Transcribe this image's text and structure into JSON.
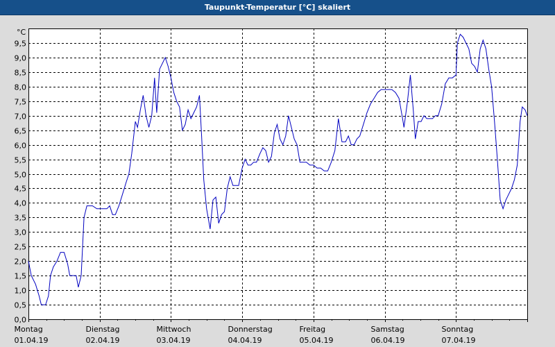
{
  "chart_data": {
    "type": "line",
    "title": "Taupunkt-Temperatur [°C] skaliert",
    "ylabel": "°C",
    "xlabel": "",
    "ylim": [
      0,
      10
    ],
    "yticks": [
      "0,0",
      "0,5",
      "1,0",
      "1,5",
      "2,0",
      "2,5",
      "3,0",
      "3,5",
      "4,0",
      "4,5",
      "5,0",
      "5,5",
      "6,0",
      "6,5",
      "7,0",
      "7,5",
      "8,0",
      "8,5",
      "9,0",
      "9,5"
    ],
    "days": [
      {
        "name": "Montag",
        "date": "01.04.19"
      },
      {
        "name": "Dienstag",
        "date": "02.04.19"
      },
      {
        "name": "Mittwoch",
        "date": "03.04.19"
      },
      {
        "name": "Donnerstag",
        "date": "04.04.19"
      },
      {
        "name": "Freitag",
        "date": "05.04.19"
      },
      {
        "name": "Samstag",
        "date": "06.04.19"
      },
      {
        "name": "Sonntag",
        "date": "07.04.19"
      }
    ],
    "xlim_days": [
      0,
      7
    ],
    "grid": true,
    "series": [
      {
        "color": "#0000c0",
        "points": [
          [
            0.0,
            2.0
          ],
          [
            0.04,
            1.5
          ],
          [
            0.1,
            1.2
          ],
          [
            0.15,
            0.8
          ],
          [
            0.18,
            0.5
          ],
          [
            0.24,
            0.5
          ],
          [
            0.28,
            0.8
          ],
          [
            0.31,
            1.5
          ],
          [
            0.35,
            1.8
          ],
          [
            0.4,
            2.0
          ],
          [
            0.45,
            2.3
          ],
          [
            0.5,
            2.3
          ],
          [
            0.55,
            1.9
          ],
          [
            0.58,
            1.5
          ],
          [
            0.63,
            1.5
          ],
          [
            0.67,
            1.5
          ],
          [
            0.7,
            1.1
          ],
          [
            0.74,
            1.5
          ],
          [
            0.78,
            3.5
          ],
          [
            0.82,
            3.9
          ],
          [
            0.86,
            3.9
          ],
          [
            0.9,
            3.9
          ],
          [
            0.96,
            3.8
          ],
          [
            1.0,
            3.8
          ],
          [
            1.05,
            3.8
          ],
          [
            1.1,
            3.8
          ],
          [
            1.14,
            3.9
          ],
          [
            1.18,
            3.6
          ],
          [
            1.22,
            3.6
          ],
          [
            1.27,
            3.9
          ],
          [
            1.32,
            4.3
          ],
          [
            1.37,
            4.7
          ],
          [
            1.41,
            5.0
          ],
          [
            1.45,
            5.7
          ],
          [
            1.5,
            6.8
          ],
          [
            1.53,
            6.6
          ],
          [
            1.57,
            7.2
          ],
          [
            1.61,
            7.7
          ],
          [
            1.65,
            7.0
          ],
          [
            1.69,
            6.6
          ],
          [
            1.73,
            7.0
          ],
          [
            1.77,
            8.3
          ],
          [
            1.8,
            7.1
          ],
          [
            1.84,
            8.6
          ],
          [
            1.88,
            8.8
          ],
          [
            1.92,
            9.0
          ],
          [
            1.96,
            8.7
          ],
          [
            2.0,
            8.3
          ],
          [
            2.04,
            7.8
          ],
          [
            2.08,
            7.5
          ],
          [
            2.12,
            7.3
          ],
          [
            2.16,
            6.5
          ],
          [
            2.2,
            6.7
          ],
          [
            2.24,
            7.2
          ],
          [
            2.28,
            6.9
          ],
          [
            2.32,
            7.1
          ],
          [
            2.36,
            7.3
          ],
          [
            2.4,
            7.7
          ],
          [
            2.43,
            6.3
          ],
          [
            2.46,
            4.8
          ],
          [
            2.5,
            3.8
          ],
          [
            2.55,
            3.1
          ],
          [
            2.59,
            4.1
          ],
          [
            2.63,
            4.2
          ],
          [
            2.67,
            3.3
          ],
          [
            2.71,
            3.6
          ],
          [
            2.75,
            3.7
          ],
          [
            2.79,
            4.5
          ],
          [
            2.83,
            4.9
          ],
          [
            2.87,
            4.6
          ],
          [
            2.91,
            4.6
          ],
          [
            2.95,
            4.6
          ],
          [
            3.0,
            5.2
          ],
          [
            3.04,
            5.5
          ],
          [
            3.08,
            5.3
          ],
          [
            3.12,
            5.3
          ],
          [
            3.16,
            5.4
          ],
          [
            3.2,
            5.4
          ],
          [
            3.25,
            5.7
          ],
          [
            3.29,
            5.9
          ],
          [
            3.33,
            5.8
          ],
          [
            3.37,
            5.4
          ],
          [
            3.41,
            5.6
          ],
          [
            3.45,
            6.4
          ],
          [
            3.49,
            6.7
          ],
          [
            3.53,
            6.2
          ],
          [
            3.57,
            6.0
          ],
          [
            3.61,
            6.3
          ],
          [
            3.65,
            7.0
          ],
          [
            3.69,
            6.6
          ],
          [
            3.73,
            6.2
          ],
          [
            3.77,
            6.0
          ],
          [
            3.81,
            5.4
          ],
          [
            3.86,
            5.4
          ],
          [
            3.9,
            5.4
          ],
          [
            3.95,
            5.3
          ],
          [
            4.0,
            5.3
          ],
          [
            4.05,
            5.2
          ],
          [
            4.1,
            5.2
          ],
          [
            4.15,
            5.1
          ],
          [
            4.2,
            5.1
          ],
          [
            4.25,
            5.4
          ],
          [
            4.3,
            5.8
          ],
          [
            4.35,
            6.9
          ],
          [
            4.4,
            6.1
          ],
          [
            4.45,
            6.1
          ],
          [
            4.49,
            6.3
          ],
          [
            4.53,
            6.0
          ],
          [
            4.57,
            6.0
          ],
          [
            4.61,
            6.2
          ],
          [
            4.65,
            6.3
          ],
          [
            4.7,
            6.7
          ],
          [
            4.75,
            7.1
          ],
          [
            4.8,
            7.4
          ],
          [
            4.85,
            7.6
          ],
          [
            4.9,
            7.8
          ],
          [
            4.95,
            7.9
          ],
          [
            5.0,
            7.9
          ],
          [
            5.05,
            7.9
          ],
          [
            5.1,
            7.9
          ],
          [
            5.15,
            7.8
          ],
          [
            5.2,
            7.6
          ],
          [
            5.25,
            6.9
          ],
          [
            5.27,
            6.6
          ],
          [
            5.32,
            7.5
          ],
          [
            5.36,
            8.4
          ],
          [
            5.4,
            7.2
          ],
          [
            5.43,
            6.2
          ],
          [
            5.47,
            6.8
          ],
          [
            5.51,
            6.8
          ],
          [
            5.55,
            7.0
          ],
          [
            5.59,
            6.9
          ],
          [
            5.63,
            6.9
          ],
          [
            5.67,
            6.9
          ],
          [
            5.71,
            7.0
          ],
          [
            5.75,
            7.0
          ],
          [
            5.8,
            7.4
          ],
          [
            5.85,
            8.1
          ],
          [
            5.9,
            8.3
          ],
          [
            5.95,
            8.3
          ],
          [
            6.0,
            8.4
          ],
          [
            6.02,
            9.5
          ],
          [
            6.06,
            9.8
          ],
          [
            6.1,
            9.7
          ],
          [
            6.14,
            9.5
          ],
          [
            6.18,
            9.3
          ],
          [
            6.22,
            8.8
          ],
          [
            6.26,
            8.7
          ],
          [
            6.3,
            8.5
          ],
          [
            6.34,
            9.3
          ],
          [
            6.38,
            9.6
          ],
          [
            6.42,
            9.3
          ],
          [
            6.46,
            8.6
          ],
          [
            6.5,
            8.0
          ],
          [
            6.54,
            6.8
          ],
          [
            6.58,
            5.5
          ],
          [
            6.62,
            4.1
          ],
          [
            6.66,
            3.8
          ],
          [
            6.7,
            4.1
          ],
          [
            6.74,
            4.3
          ],
          [
            6.78,
            4.5
          ],
          [
            6.82,
            4.8
          ],
          [
            6.86,
            5.3
          ],
          [
            6.9,
            6.8
          ],
          [
            6.93,
            7.3
          ],
          [
            6.97,
            7.2
          ],
          [
            7.0,
            7.0
          ]
        ]
      }
    ]
  }
}
